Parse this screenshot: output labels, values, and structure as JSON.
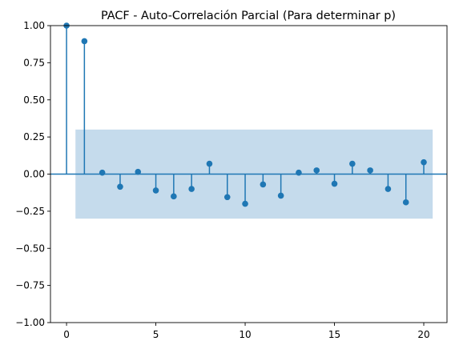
{
  "chart_data": {
    "type": "stem",
    "title": "PACF - Auto-Correlación Parcial (Para determinar p)",
    "xlabel": "",
    "ylabel": "",
    "xlim": [
      -0.9,
      21.3
    ],
    "ylim": [
      -1.0,
      1.0
    ],
    "xticks": [
      0,
      5,
      10,
      15,
      20
    ],
    "xtick_labels": [
      "0",
      "5",
      "10",
      "15",
      "20"
    ],
    "yticks": [
      -1.0,
      -0.75,
      -0.5,
      -0.25,
      0.0,
      0.25,
      0.5,
      0.75,
      1.0
    ],
    "ytick_labels": [
      "−1.00",
      "−0.75",
      "−0.50",
      "−0.25",
      "0.00",
      "0.25",
      "0.50",
      "0.75",
      "1.00"
    ],
    "grid": false,
    "lags": [
      0,
      1,
      2,
      3,
      4,
      5,
      6,
      7,
      8,
      9,
      10,
      11,
      12,
      13,
      14,
      15,
      16,
      17,
      18,
      19,
      20
    ],
    "values": [
      1.0,
      0.895,
      0.01,
      -0.085,
      0.015,
      -0.11,
      -0.15,
      -0.1,
      0.07,
      -0.155,
      -0.2,
      -0.07,
      -0.145,
      0.01,
      0.025,
      -0.065,
      0.07,
      0.025,
      -0.1,
      -0.19,
      0.08
    ],
    "confidence_band": {
      "x_start": 0.5,
      "x_end": 20.5,
      "lower": -0.3,
      "upper": 0.3
    },
    "colors": {
      "stem": "#1f77b4",
      "band": "#c5dbec",
      "axis": "#000000"
    }
  }
}
